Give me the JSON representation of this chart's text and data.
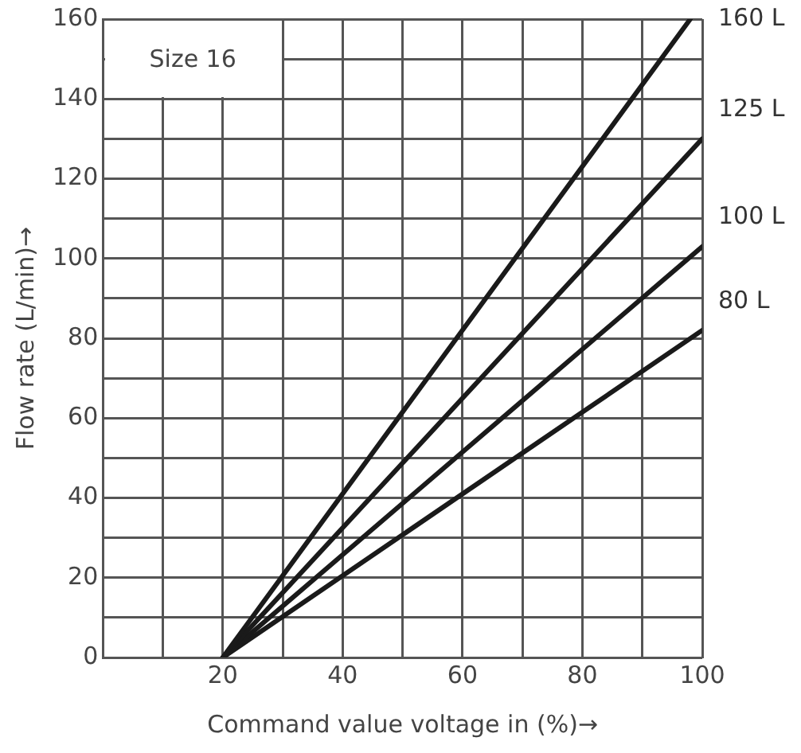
{
  "chart_data": {
    "type": "line",
    "xlabel": "Command value voltage in (%)→",
    "ylabel": "Flow rate (L/min)→",
    "annotations": [
      "Size 16"
    ],
    "series": [
      {
        "name": "160 L",
        "color": "#1a1a1a",
        "x": [
          20,
          98
        ],
        "values": [
          0,
          160
        ]
      },
      {
        "name": "125 L",
        "color": "#1a1a1a",
        "x": [
          20,
          100
        ],
        "values": [
          0,
          130
        ]
      },
      {
        "name": "100 L",
        "color": "#1a1a1a",
        "x": [
          20,
          100
        ],
        "values": [
          0,
          103
        ]
      },
      {
        "name": "80 L",
        "color": "#1a1a1a",
        "x": [
          20,
          100
        ],
        "values": [
          0,
          82
        ]
      }
    ],
    "xlim": [
      0,
      100
    ],
    "ylim": [
      0,
      160
    ],
    "xticks": [
      {
        "value": 0,
        "label": null
      },
      {
        "value": 10,
        "label": null
      },
      20,
      {
        "value": 30,
        "label": null
      },
      40,
      {
        "value": 50,
        "label": null
      },
      60,
      {
        "value": 70,
        "label": null
      },
      80,
      {
        "value": 90,
        "label": null
      },
      100
    ],
    "yticks": [
      0,
      {
        "value": 10,
        "label": null
      },
      20,
      {
        "value": 30,
        "label": null
      },
      40,
      {
        "value": 50,
        "label": null
      },
      60,
      {
        "value": 70,
        "label": null
      },
      80,
      {
        "value": 90,
        "label": null
      },
      100,
      {
        "value": 110,
        "label": null
      },
      120,
      {
        "value": 130,
        "label": null
      },
      140,
      {
        "value": 150,
        "label": null
      },
      160
    ],
    "grid": true,
    "legend": false,
    "marker": "none",
    "line_style": "solid"
  }
}
